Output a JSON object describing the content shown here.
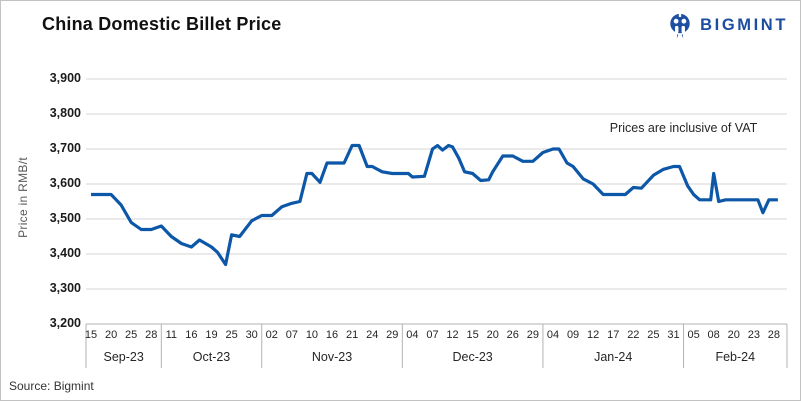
{
  "header": {
    "title": "China Domestic Billet Price",
    "brand": "BIGMINT"
  },
  "footer": {
    "source": "Source: Bigmint"
  },
  "brand_color": "#1c4da0",
  "chart_data": {
    "type": "line",
    "title": "China Domestic Billet Price",
    "ylabel": "Price in RMB/t",
    "annotation": "Prices are inclusive of VAT",
    "legend": "none",
    "grid": "horizontal",
    "line_color": "#0d57a8",
    "ylim": [
      3200,
      3900
    ],
    "yticks": [
      {
        "value": 3900,
        "label": "3,900"
      },
      {
        "value": 3800,
        "label": "3,800"
      },
      {
        "value": 3700,
        "label": "3,700"
      },
      {
        "value": 3600,
        "label": "3,600"
      },
      {
        "value": 3500,
        "label": "3,500"
      },
      {
        "value": 3400,
        "label": "3,400"
      },
      {
        "value": 3300,
        "label": "3,300"
      },
      {
        "value": 3200,
        "label": "3,200"
      }
    ],
    "x_tick_labels": [
      "15",
      "20",
      "25",
      "28",
      "11",
      "16",
      "19",
      "25",
      "30",
      "02",
      "07",
      "10",
      "16",
      "21",
      "24",
      "29",
      "04",
      "07",
      "12",
      "15",
      "20",
      "26",
      "29",
      "04",
      "09",
      "12",
      "17",
      "22",
      "25",
      "31",
      "05",
      "08",
      "20",
      "23",
      "28"
    ],
    "month_groups": [
      {
        "label": "Sep-23",
        "ticks": 4
      },
      {
        "label": "Oct-23",
        "ticks": 5
      },
      {
        "label": "Nov-23",
        "ticks": 7
      },
      {
        "label": "Dec-23",
        "ticks": 7
      },
      {
        "label": "Jan-24",
        "ticks": 7
      },
      {
        "label": "Feb-24",
        "ticks": 5
      }
    ],
    "tick_values": {
      "Sep-23 15": 3570,
      "Sep-23 20": 3570,
      "Sep-23 25": 3490,
      "Sep-23 28": 3470,
      "Oct-23 11": 3450,
      "Oct-23 16": 3420,
      "Oct-23 19": 3420,
      "Oct-23 25": 3455,
      "Oct-23 30": 3495,
      "Nov-23 02": 3510,
      "Nov-23 07": 3545,
      "Nov-23 10": 3630,
      "Nov-23 16": 3660,
      "Nov-23 21": 3710,
      "Nov-23 24": 3650,
      "Nov-23 29": 3630,
      "Dec-23 04": 3620,
      "Dec-23 07": 3700,
      "Dec-23 12": 3706,
      "Dec-23 15": 3630,
      "Dec-23 20": 3635,
      "Dec-23 26": 3680,
      "Dec-23 29": 3665,
      "Jan-24 04": 3700,
      "Jan-24 09": 3650,
      "Jan-24 12": 3600,
      "Jan-24 17": 3570,
      "Jan-24 22": 3590,
      "Jan-24 25": 3625,
      "Jan-24 31": 3650,
      "Feb-24 05": 3570,
      "Feb-24 08": 3630,
      "Feb-24 20": 3555,
      "Feb-24 23": 3555,
      "Feb-24 28": 3555
    },
    "points": [
      {
        "x": 0,
        "v": 3570
      },
      {
        "x": 0.5,
        "v": 3570
      },
      {
        "x": 1,
        "v": 3570
      },
      {
        "x": 1.5,
        "v": 3540
      },
      {
        "x": 2,
        "v": 3490
      },
      {
        "x": 2.5,
        "v": 3470
      },
      {
        "x": 3,
        "v": 3470
      },
      {
        "x": 3.5,
        "v": 3480
      },
      {
        "x": 4,
        "v": 3450
      },
      {
        "x": 4.5,
        "v": 3430
      },
      {
        "x": 5,
        "v": 3420
      },
      {
        "x": 5.4,
        "v": 3440
      },
      {
        "x": 6,
        "v": 3420
      },
      {
        "x": 6.3,
        "v": 3405
      },
      {
        "x": 6.7,
        "v": 3370
      },
      {
        "x": 7,
        "v": 3455
      },
      {
        "x": 7.4,
        "v": 3450
      },
      {
        "x": 8,
        "v": 3495
      },
      {
        "x": 8.5,
        "v": 3510
      },
      {
        "x": 9,
        "v": 3510
      },
      {
        "x": 9.5,
        "v": 3535
      },
      {
        "x": 10,
        "v": 3545
      },
      {
        "x": 10.4,
        "v": 3550
      },
      {
        "x": 10.75,
        "v": 3630
      },
      {
        "x": 11,
        "v": 3630
      },
      {
        "x": 11.4,
        "v": 3605
      },
      {
        "x": 11.75,
        "v": 3660
      },
      {
        "x": 12,
        "v": 3660
      },
      {
        "x": 12.6,
        "v": 3660
      },
      {
        "x": 13,
        "v": 3710
      },
      {
        "x": 13.35,
        "v": 3710
      },
      {
        "x": 13.75,
        "v": 3650
      },
      {
        "x": 14,
        "v": 3650
      },
      {
        "x": 14.5,
        "v": 3635
      },
      {
        "x": 15,
        "v": 3630
      },
      {
        "x": 15.8,
        "v": 3630
      },
      {
        "x": 16,
        "v": 3620
      },
      {
        "x": 16.6,
        "v": 3622
      },
      {
        "x": 17,
        "v": 3700
      },
      {
        "x": 17.25,
        "v": 3710
      },
      {
        "x": 17.5,
        "v": 3697
      },
      {
        "x": 17.8,
        "v": 3710
      },
      {
        "x": 18,
        "v": 3706
      },
      {
        "x": 18.3,
        "v": 3675
      },
      {
        "x": 18.6,
        "v": 3635
      },
      {
        "x": 19,
        "v": 3630
      },
      {
        "x": 19.4,
        "v": 3610
      },
      {
        "x": 19.8,
        "v": 3612
      },
      {
        "x": 20,
        "v": 3635
      },
      {
        "x": 20.5,
        "v": 3680
      },
      {
        "x": 21,
        "v": 3680
      },
      {
        "x": 21.5,
        "v": 3665
      },
      {
        "x": 22,
        "v": 3665
      },
      {
        "x": 22.5,
        "v": 3690
      },
      {
        "x": 23,
        "v": 3700
      },
      {
        "x": 23.3,
        "v": 3700
      },
      {
        "x": 23.7,
        "v": 3660
      },
      {
        "x": 24,
        "v": 3650
      },
      {
        "x": 24.5,
        "v": 3615
      },
      {
        "x": 25,
        "v": 3600
      },
      {
        "x": 25.5,
        "v": 3570
      },
      {
        "x": 26,
        "v": 3570
      },
      {
        "x": 26.6,
        "v": 3570
      },
      {
        "x": 27,
        "v": 3590
      },
      {
        "x": 27.4,
        "v": 3588
      },
      {
        "x": 28,
        "v": 3625
      },
      {
        "x": 28.5,
        "v": 3642
      },
      {
        "x": 29,
        "v": 3650
      },
      {
        "x": 29.3,
        "v": 3650
      },
      {
        "x": 29.7,
        "v": 3595
      },
      {
        "x": 30,
        "v": 3570
      },
      {
        "x": 30.3,
        "v": 3555
      },
      {
        "x": 30.85,
        "v": 3555
      },
      {
        "x": 31,
        "v": 3630
      },
      {
        "x": 31.25,
        "v": 3550
      },
      {
        "x": 31.6,
        "v": 3555
      },
      {
        "x": 32,
        "v": 3555
      },
      {
        "x": 33,
        "v": 3555
      },
      {
        "x": 33.2,
        "v": 3555
      },
      {
        "x": 33.45,
        "v": 3518
      },
      {
        "x": 33.75,
        "v": 3555
      },
      {
        "x": 34.2,
        "v": 3555
      }
    ]
  }
}
